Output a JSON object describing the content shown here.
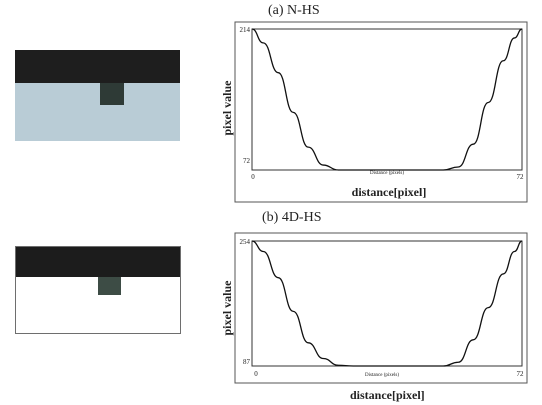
{
  "figures": [
    {
      "id": "a",
      "title": "(a) N-HS",
      "sample_colors": {
        "dark": "#1e1e1e",
        "light": "#b9ccd6",
        "notch": "#2e3a36"
      },
      "chart_data": {
        "type": "line",
        "title": "(a) N-HS",
        "xlabel": "distance[pixel]",
        "ylabel": "pixel value",
        "inner_xlabel": "Distance (pixels)",
        "xlim": [
          0,
          72
        ],
        "ylim": [
          72,
          214
        ],
        "x_ticks": [
          "0",
          "72"
        ],
        "y_ticks": [
          "72",
          "214"
        ],
        "grid": false,
        "series": [
          {
            "color": "#111111",
            "x": [
              0,
              3,
              7,
              11,
              15,
              19,
              23,
              27,
              31,
              35,
              39,
              43,
              47,
              51,
              55,
              59,
              63,
              67,
              70,
              72
            ],
            "y": [
              214,
              200,
              170,
              130,
              95,
              77,
              72,
              72,
              72,
              72,
              72,
              72,
              72,
              72,
              75,
              98,
              140,
              182,
              205,
              214
            ]
          }
        ]
      }
    },
    {
      "id": "b",
      "title": "(b) 4D-HS",
      "sample_colors": {
        "dark": "#1c1c1c",
        "light": "#ffffff",
        "notch": "#3d4c45"
      },
      "chart_data": {
        "type": "line",
        "title": "(b) 4D-HS",
        "xlabel": "distance[pixel]",
        "ylabel": "pixel value",
        "inner_xlabel": "Distance (pixels)",
        "xlim": [
          0,
          72
        ],
        "ylim": [
          87,
          254
        ],
        "x_ticks": [
          "0",
          "72"
        ],
        "y_ticks": [
          "87",
          "254"
        ],
        "grid": false,
        "series": [
          {
            "color": "#111111",
            "x": [
              0,
              3,
              7,
              11,
              15,
              19,
              23,
              27,
              31,
              35,
              39,
              43,
              47,
              51,
              55,
              59,
              63,
              67,
              70,
              72
            ],
            "y": [
              254,
              240,
              205,
              160,
              118,
              97,
              88,
              87,
              87,
              87,
              87,
              87,
              87,
              87,
              92,
              122,
              165,
              210,
              240,
              254
            ]
          }
        ]
      }
    }
  ]
}
